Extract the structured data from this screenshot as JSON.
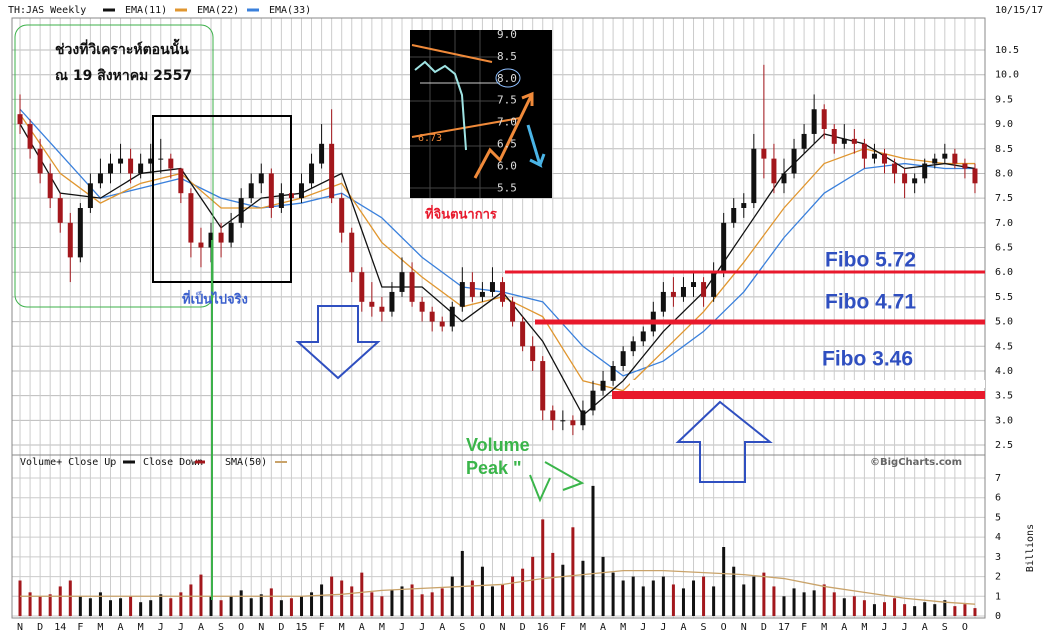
{
  "chart_data": {
    "type": "candlestick",
    "title": "TH:JAS Weekly",
    "date": "10/15/17",
    "source": "©BigCharts.com",
    "grid": true,
    "categories": [
      "N",
      null,
      "D",
      null,
      "14",
      null,
      "F",
      null,
      "M",
      null,
      "A",
      null,
      "M",
      null,
      "J",
      null,
      "J",
      null,
      "A",
      null,
      "S",
      null,
      "O",
      null,
      "N",
      null,
      "D",
      null,
      "15",
      null,
      "F",
      null,
      "M",
      null,
      "A",
      null,
      "M",
      null,
      "J",
      null,
      "J",
      null,
      "A",
      null,
      "S",
      null,
      "O",
      null,
      "N",
      null,
      "D",
      null,
      "16",
      null,
      "F",
      null,
      "M",
      null,
      "A",
      null,
      "M",
      null,
      "J",
      null,
      "J",
      null,
      "A",
      null,
      "S",
      null,
      "O",
      null,
      "N",
      null,
      "D",
      null,
      "17",
      null,
      "F",
      null,
      "M",
      null,
      "A",
      null,
      "M",
      null,
      "J",
      null,
      "J",
      null,
      "A",
      null,
      "S",
      null,
      "O",
      null
    ],
    "candles": [
      [
        9.2,
        9.6,
        8.8,
        9.0
      ],
      [
        9.0,
        9.1,
        8.3,
        8.5
      ],
      [
        8.5,
        8.7,
        7.8,
        8.0
      ],
      [
        8.0,
        8.2,
        7.3,
        7.5
      ],
      [
        7.5,
        7.6,
        6.8,
        7.0
      ],
      [
        7.0,
        7.2,
        5.8,
        6.3
      ],
      [
        6.3,
        7.4,
        6.2,
        7.3
      ],
      [
        7.3,
        8.0,
        7.2,
        7.8
      ],
      [
        7.8,
        8.3,
        7.7,
        8.0
      ],
      [
        8.0,
        8.4,
        7.8,
        8.2
      ],
      [
        8.2,
        8.6,
        8.0,
        8.3
      ],
      [
        8.3,
        8.5,
        7.8,
        8.0
      ],
      [
        8.0,
        8.4,
        7.9,
        8.2
      ],
      [
        8.2,
        8.6,
        8.0,
        8.3
      ],
      [
        8.3,
        8.7,
        8.0,
        8.3
      ],
      [
        8.3,
        8.4,
        7.9,
        8.1
      ],
      [
        8.1,
        8.1,
        7.4,
        7.6
      ],
      [
        7.6,
        7.7,
        6.3,
        6.6
      ],
      [
        6.6,
        6.9,
        6.1,
        6.5
      ],
      [
        6.5,
        7.0,
        6.2,
        6.8
      ],
      [
        6.8,
        7.0,
        6.3,
        6.6
      ],
      [
        6.6,
        7.2,
        6.5,
        7.0
      ],
      [
        7.0,
        7.7,
        6.9,
        7.5
      ],
      [
        7.5,
        8.0,
        7.4,
        7.8
      ],
      [
        7.8,
        8.2,
        7.6,
        8.0
      ],
      [
        8.0,
        8.1,
        7.1,
        7.3
      ],
      [
        7.3,
        7.8,
        7.2,
        7.6
      ],
      [
        7.6,
        7.7,
        7.3,
        7.5
      ],
      [
        7.5,
        8.0,
        7.4,
        7.8
      ],
      [
        7.8,
        8.4,
        7.7,
        8.2
      ],
      [
        8.2,
        9.0,
        8.1,
        8.6
      ],
      [
        8.6,
        9.3,
        7.4,
        7.5
      ],
      [
        7.5,
        7.6,
        6.6,
        6.8
      ],
      [
        6.8,
        6.9,
        5.8,
        6.0
      ],
      [
        6.0,
        6.1,
        5.2,
        5.4
      ],
      [
        5.4,
        5.8,
        5.1,
        5.3
      ],
      [
        5.3,
        5.5,
        5.0,
        5.2
      ],
      [
        5.2,
        5.8,
        5.1,
        5.6
      ],
      [
        5.6,
        6.3,
        5.5,
        6.0
      ],
      [
        6.0,
        6.2,
        5.3,
        5.4
      ],
      [
        5.4,
        5.5,
        5.0,
        5.2
      ],
      [
        5.2,
        5.3,
        4.8,
        5.0
      ],
      [
        5.0,
        5.1,
        4.8,
        4.9
      ],
      [
        4.9,
        5.4,
        4.8,
        5.3
      ],
      [
        5.3,
        6.1,
        5.2,
        5.8
      ],
      [
        5.8,
        6.0,
        5.4,
        5.5
      ],
      [
        5.5,
        5.8,
        5.4,
        5.6
      ],
      [
        5.6,
        6.1,
        5.5,
        5.8
      ],
      [
        5.8,
        5.9,
        5.3,
        5.4
      ],
      [
        5.4,
        5.5,
        4.9,
        5.0
      ],
      [
        5.0,
        5.1,
        4.4,
        4.5
      ],
      [
        4.5,
        4.7,
        4.0,
        4.2
      ],
      [
        4.2,
        4.3,
        3.0,
        3.2
      ],
      [
        3.2,
        3.3,
        2.8,
        3.0
      ],
      [
        3.0,
        3.2,
        2.8,
        3.0
      ],
      [
        3.0,
        3.1,
        2.7,
        2.9
      ],
      [
        2.9,
        3.4,
        2.8,
        3.2
      ],
      [
        3.2,
        3.8,
        3.1,
        3.6
      ],
      [
        3.6,
        4.0,
        3.5,
        3.8
      ],
      [
        3.8,
        4.2,
        3.7,
        4.1
      ],
      [
        4.1,
        4.5,
        4.0,
        4.4
      ],
      [
        4.4,
        4.7,
        4.3,
        4.6
      ],
      [
        4.6,
        4.9,
        4.5,
        4.8
      ],
      [
        4.8,
        5.4,
        4.7,
        5.2
      ],
      [
        5.2,
        5.8,
        5.1,
        5.6
      ],
      [
        5.6,
        5.9,
        5.3,
        5.5
      ],
      [
        5.5,
        5.9,
        5.4,
        5.7
      ],
      [
        5.7,
        6.0,
        5.5,
        5.8
      ],
      [
        5.8,
        5.9,
        5.3,
        5.5
      ],
      [
        5.5,
        6.2,
        5.4,
        6.0
      ],
      [
        6.0,
        7.2,
        5.9,
        7.0
      ],
      [
        7.0,
        7.5,
        6.9,
        7.3
      ],
      [
        7.3,
        7.6,
        7.1,
        7.4
      ],
      [
        7.4,
        8.8,
        7.3,
        8.5
      ],
      [
        8.5,
        10.2,
        7.9,
        8.3
      ],
      [
        8.3,
        8.6,
        7.6,
        7.8
      ],
      [
        7.8,
        8.3,
        7.6,
        8.0
      ],
      [
        8.0,
        8.7,
        7.9,
        8.5
      ],
      [
        8.5,
        9.0,
        8.4,
        8.8
      ],
      [
        8.8,
        9.6,
        8.6,
        9.3
      ],
      [
        9.3,
        9.4,
        8.7,
        8.9
      ],
      [
        8.9,
        9.0,
        8.4,
        8.6
      ],
      [
        8.6,
        9.0,
        8.5,
        8.7
      ],
      [
        8.7,
        8.9,
        8.4,
        8.6
      ],
      [
        8.6,
        8.7,
        8.1,
        8.3
      ],
      [
        8.3,
        8.6,
        8.2,
        8.4
      ],
      [
        8.4,
        8.5,
        8.0,
        8.2
      ],
      [
        8.2,
        8.3,
        7.8,
        8.0
      ],
      [
        8.0,
        8.1,
        7.5,
        7.8
      ],
      [
        7.8,
        8.0,
        7.6,
        7.9
      ],
      [
        7.9,
        8.3,
        7.8,
        8.2
      ],
      [
        8.2,
        8.4,
        8.1,
        8.3
      ],
      [
        8.3,
        8.6,
        8.2,
        8.4
      ],
      [
        8.4,
        8.5,
        8.1,
        8.2
      ],
      [
        8.2,
        8.3,
        7.9,
        8.1
      ],
      [
        8.1,
        8.2,
        7.6,
        7.8
      ]
    ],
    "up_color": "#111111",
    "down_color": "#a3171c",
    "ylim": [
      2.5,
      10.5
    ],
    "yticks": [
      2.5,
      {
        "value": 3,
        "label": "3.0"
      },
      3.5,
      {
        "value": 4,
        "label": "4.0"
      },
      4.5,
      {
        "value": 5,
        "label": "5.0"
      },
      5.5,
      {
        "value": 6,
        "label": "6.0"
      },
      6.5,
      {
        "value": 7,
        "label": "7.0"
      },
      7.5,
      {
        "value": 8,
        "label": "8.0"
      },
      8.5,
      {
        "value": 9,
        "label": "9.0"
      },
      9.5,
      {
        "value": 10,
        "label": "10.0"
      },
      10.5
    ],
    "series": [
      {
        "name": "EMA(11)",
        "color": "#111111",
        "x": [
          0,
          4,
          8,
          12,
          16,
          20,
          24,
          28,
          32,
          36,
          40,
          44,
          48,
          52,
          56,
          60,
          64,
          68,
          72,
          76,
          80,
          84,
          88,
          92,
          95
        ],
        "values": [
          9.0,
          7.6,
          7.5,
          8.0,
          8.1,
          6.9,
          7.5,
          7.6,
          8.0,
          5.7,
          5.7,
          5.0,
          5.6,
          4.6,
          3.1,
          3.8,
          4.8,
          5.6,
          6.8,
          8.0,
          8.8,
          8.6,
          8.1,
          8.2,
          8.1
        ]
      },
      {
        "name": "EMA(22)",
        "color": "#e0962f",
        "x": [
          0,
          4,
          8,
          12,
          16,
          20,
          24,
          28,
          32,
          36,
          40,
          44,
          48,
          52,
          56,
          60,
          64,
          68,
          72,
          76,
          80,
          84,
          88,
          92,
          95
        ],
        "values": [
          9.2,
          8.0,
          7.4,
          7.8,
          8.0,
          7.3,
          7.3,
          7.5,
          7.8,
          6.6,
          5.9,
          5.3,
          5.5,
          5.1,
          3.8,
          3.6,
          4.4,
          5.2,
          6.2,
          7.3,
          8.2,
          8.5,
          8.3,
          8.2,
          8.2
        ]
      },
      {
        "name": "EMA(33)",
        "color": "#3a80dc",
        "x": [
          0,
          4,
          8,
          12,
          16,
          20,
          24,
          28,
          32,
          36,
          40,
          44,
          48,
          52,
          56,
          60,
          64,
          68,
          72,
          76,
          80,
          84,
          88,
          92,
          95
        ],
        "values": [
          9.3,
          8.4,
          7.5,
          7.7,
          7.9,
          7.5,
          7.3,
          7.4,
          7.6,
          7.1,
          6.3,
          5.7,
          5.6,
          5.4,
          4.5,
          3.9,
          4.2,
          4.8,
          5.6,
          6.7,
          7.6,
          8.1,
          8.2,
          8.1,
          8.1
        ]
      }
    ],
    "volume": {
      "up_label": "Volume+ Close Up",
      "down_label": "Close Down",
      "axis_label": "Billions",
      "ylim": [
        0,
        7
      ],
      "yticks": [
        0,
        1,
        2,
        3,
        4,
        5,
        6,
        7
      ],
      "values": [
        1.8,
        1.2,
        1.0,
        1.1,
        1.5,
        1.8,
        1.0,
        0.9,
        1.2,
        0.8,
        0.9,
        1.0,
        0.7,
        0.8,
        1.1,
        0.9,
        1.2,
        1.6,
        2.1,
        1.0,
        0.8,
        1.0,
        1.3,
        0.9,
        1.1,
        1.4,
        0.8,
        0.9,
        1.0,
        1.2,
        1.6,
        2.0,
        1.8,
        1.5,
        2.2,
        1.2,
        1.0,
        1.3,
        1.5,
        1.6,
        1.1,
        1.2,
        1.4,
        2.0,
        3.3,
        1.8,
        2.5,
        1.5,
        1.6,
        2.0,
        2.4,
        3.0,
        4.9,
        3.2,
        2.6,
        4.5,
        2.8,
        6.6,
        3.0,
        2.2,
        1.8,
        2.0,
        1.5,
        1.8,
        2.0,
        1.6,
        1.4,
        1.8,
        2.0,
        1.5,
        3.5,
        2.5,
        1.6,
        2.0,
        2.2,
        1.5,
        1.0,
        1.4,
        1.2,
        1.3,
        1.6,
        1.2,
        0.9,
        1.0,
        0.8,
        0.6,
        0.7,
        0.9,
        0.6,
        0.5,
        0.7,
        0.6,
        0.8,
        0.5,
        0.6,
        0.4
      ],
      "sma": {
        "name": "SMA(50)",
        "color": "#c9a36a",
        "x": [
          0,
          4,
          8,
          12,
          16,
          20,
          24,
          28,
          32,
          36,
          40,
          44,
          48,
          52,
          56,
          60,
          64,
          68,
          72,
          76,
          80,
          84,
          88,
          92,
          95
        ],
        "values": [
          1.0,
          1.0,
          1.0,
          1.0,
          1.0,
          1.0,
          1.0,
          1.0,
          1.1,
          1.3,
          1.4,
          1.5,
          1.6,
          1.9,
          2.1,
          2.3,
          2.3,
          2.2,
          2.1,
          1.9,
          1.5,
          1.2,
          0.9,
          0.7,
          0.6
        ]
      }
    }
  },
  "annotations": {
    "analysis_box": [
      "ช่วงที่วิเคราะห์ตอนนั้น",
      "ณ 19 สิงหาคม 2557"
    ],
    "actual": "ที่เป็นไปจริง",
    "imagined": "ที่จินตนาการ",
    "volume_peak": [
      "Volume",
      "Peak \""
    ],
    "fibo": [
      "Fibo 5.72",
      "Fibo 4.71",
      "Fibo 3.46"
    ],
    "inset": {
      "ticks": [
        "9.0",
        "8.5",
        "8.0",
        "7.5",
        "7.0",
        "6.5",
        "6.0",
        "5.5"
      ],
      "marker": "6.73"
    }
  }
}
